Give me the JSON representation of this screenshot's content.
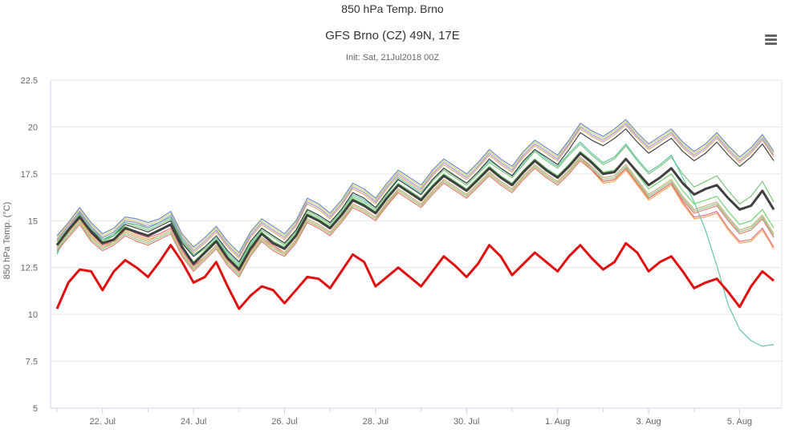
{
  "header": {
    "text": "850 hPa Temp. Brno"
  },
  "chart_data": {
    "type": "line",
    "title": "GFS Brno (CZ) 49N, 17E",
    "subtitle": "Init: Sat, 21Jul2018 00Z",
    "ylabel": "850 hPa Temp. (°C)",
    "xlabel": "",
    "ylim": [
      5,
      22.5
    ],
    "y_ticks": [
      "5",
      "7.5",
      "10",
      "12.5",
      "15",
      "17.5",
      "20",
      "22.5"
    ],
    "x_ticks": [
      "22. Jul",
      "24. Jul",
      "26. Jul",
      "28. Jul",
      "30. Jul",
      "1. Aug",
      "3. Aug",
      "5. Aug"
    ],
    "x_start": "21 Jul 00Z",
    "x_step_hours": 6,
    "grid": "horizontal",
    "legend": "none",
    "colors": {
      "red": "#e01010",
      "mean": "#404040",
      "members": [
        "#e8a060",
        "#60b8e0",
        "#70c070",
        "#e06080",
        "#d0d060",
        "#208080",
        "#50c0a0",
        "#f0a040",
        "#9090e0",
        "#e07060",
        "#303030",
        "#a0d090",
        "#6080c0",
        "#f0c080",
        "#60d060",
        "#c070c0"
      ]
    },
    "series": [
      {
        "name": "",
        "role": "red-thick",
        "values": [
          10.3,
          11.7,
          12.4,
          12.3,
          11.3,
          12.3,
          12.9,
          12.5,
          12.0,
          12.8,
          13.7,
          12.8,
          11.7,
          12.0,
          12.8,
          11.5,
          10.3,
          11.0,
          11.5,
          11.3,
          10.6,
          11.3,
          12.0,
          11.9,
          11.4,
          12.3,
          13.2,
          12.8,
          11.5,
          12.0,
          12.5,
          12.0,
          11.5,
          12.3,
          13.1,
          12.6,
          12.0,
          12.7,
          13.7,
          13.1,
          12.1,
          12.7,
          13.3,
          12.8,
          12.3,
          13.1,
          13.7,
          13.0,
          12.4,
          12.8,
          13.8,
          13.3,
          12.3,
          12.8,
          13.1,
          12.3,
          11.4,
          11.7,
          11.9,
          11.2,
          10.4,
          11.5,
          12.3,
          11.8
        ]
      },
      {
        "name": "",
        "role": "mean-thick",
        "values": [
          13.7,
          14.5,
          15.2,
          14.4,
          13.8,
          14.0,
          14.6,
          14.4,
          14.2,
          14.5,
          14.8,
          13.6,
          12.7,
          13.3,
          13.9,
          13.0,
          12.4,
          13.5,
          14.3,
          13.8,
          13.5,
          14.2,
          15.3,
          15.0,
          14.6,
          15.3,
          16.1,
          15.8,
          15.4,
          16.2,
          16.9,
          16.5,
          16.1,
          16.8,
          17.4,
          17.0,
          16.6,
          17.2,
          17.8,
          17.3,
          16.9,
          17.6,
          18.2,
          17.7,
          17.3,
          17.9,
          18.6,
          18.1,
          17.5,
          17.6,
          18.3,
          17.6,
          16.9,
          17.3,
          17.8,
          17.0,
          16.4,
          16.7,
          16.9,
          16.2,
          15.6,
          15.8,
          16.6,
          15.6
        ]
      },
      {
        "name": "",
        "values": [
          14.0,
          14.8,
          15.5,
          14.6,
          14.1,
          14.4,
          15.0,
          14.9,
          14.6,
          14.9,
          15.2,
          14.0,
          13.3,
          13.8,
          14.4,
          13.6,
          13.0,
          14.1,
          14.8,
          14.4,
          14.0,
          14.7,
          15.9,
          15.6,
          15.1,
          15.8,
          16.7,
          16.4,
          15.9,
          16.7,
          17.4,
          17.0,
          16.6,
          17.4,
          18.0,
          17.6,
          17.2,
          17.8,
          18.5,
          18.0,
          17.6,
          18.4,
          19.0,
          18.6,
          18.2,
          19.0,
          19.9,
          19.5,
          19.2,
          19.6,
          20.1,
          19.4,
          18.8,
          19.2,
          19.6,
          18.9,
          18.4,
          18.8,
          19.4,
          18.7,
          18.1,
          18.6,
          19.3,
          18.4
        ]
      },
      {
        "name": "",
        "values": [
          13.5,
          14.2,
          14.9,
          14.0,
          13.5,
          13.8,
          14.3,
          14.0,
          13.8,
          14.1,
          14.4,
          13.2,
          12.4,
          13.0,
          13.6,
          12.7,
          12.1,
          13.2,
          14.0,
          13.5,
          13.2,
          13.9,
          15.0,
          14.7,
          14.3,
          15.0,
          15.8,
          15.5,
          15.1,
          15.9,
          16.6,
          16.2,
          15.8,
          16.5,
          17.1,
          16.7,
          16.3,
          16.9,
          17.5,
          17.0,
          16.6,
          17.3,
          17.9,
          17.4,
          17.0,
          17.6,
          18.3,
          17.8,
          17.2,
          17.3,
          17.9,
          17.1,
          16.3,
          16.7,
          17.1,
          16.2,
          15.5,
          15.7,
          15.9,
          15.1,
          14.4,
          14.6,
          15.2,
          14.2
        ]
      },
      {
        "name": "",
        "values": [
          13.3,
          14.4,
          15.3,
          14.5,
          14.0,
          14.2,
          14.9,
          14.7,
          14.5,
          14.8,
          15.1,
          13.9,
          13.1,
          13.5,
          14.0,
          13.2,
          12.6,
          13.7,
          14.5,
          14.1,
          13.7,
          14.4,
          15.5,
          15.2,
          14.8,
          15.5,
          16.3,
          16.0,
          15.6,
          16.4,
          17.2,
          16.8,
          16.4,
          17.1,
          17.7,
          17.3,
          16.9,
          17.5,
          18.1,
          17.7,
          17.3,
          18.0,
          18.7,
          18.2,
          17.8,
          18.5,
          19.1,
          18.5,
          18.0,
          18.3,
          19.0,
          18.2,
          17.5,
          17.9,
          18.4,
          17.5,
          16.8,
          17.1,
          17.4,
          16.6,
          15.9,
          16.3,
          17.1,
          16.0
        ]
      },
      {
        "name": "",
        "values": [
          13.9,
          14.6,
          15.4,
          14.3,
          13.7,
          13.9,
          14.6,
          14.3,
          14.1,
          14.3,
          14.6,
          13.4,
          12.6,
          13.1,
          13.7,
          12.9,
          12.3,
          13.4,
          14.1,
          13.7,
          13.3,
          14.0,
          15.1,
          14.8,
          14.4,
          15.1,
          15.9,
          15.6,
          15.2,
          15.9,
          16.7,
          16.3,
          15.9,
          16.6,
          17.2,
          16.8,
          16.4,
          17.0,
          17.6,
          17.1,
          16.7,
          17.4,
          18.0,
          17.5,
          17.1,
          17.7,
          18.4,
          17.8,
          17.1,
          17.2,
          17.8,
          17.0,
          16.2,
          16.6,
          17.0,
          16.0,
          15.2,
          15.3,
          15.5,
          14.6,
          13.9,
          14.0,
          14.6,
          13.6
        ]
      },
      {
        "name": "",
        "values": [
          14.1,
          14.9,
          15.6,
          14.8,
          14.2,
          14.5,
          15.1,
          15.0,
          14.8,
          15.0,
          15.4,
          14.2,
          13.5,
          14.0,
          14.6,
          13.8,
          13.2,
          14.3,
          15.0,
          14.6,
          14.2,
          14.9,
          16.1,
          15.8,
          15.3,
          16.0,
          16.9,
          16.6,
          16.1,
          16.9,
          17.6,
          17.2,
          16.8,
          17.6,
          18.2,
          17.8,
          17.4,
          18.0,
          18.7,
          18.2,
          17.8,
          18.6,
          19.2,
          18.8,
          18.4,
          19.2,
          20.1,
          19.7,
          19.4,
          19.8,
          20.3,
          19.6,
          19.0,
          19.4,
          19.8,
          19.1,
          18.6,
          19.0,
          19.6,
          18.9,
          18.3,
          18.8,
          19.5,
          18.6
        ]
      },
      {
        "name": "",
        "values": [
          13.6,
          14.3,
          15.0,
          14.1,
          13.6,
          13.9,
          14.4,
          14.1,
          13.9,
          14.2,
          14.5,
          13.3,
          12.5,
          13.1,
          13.7,
          12.8,
          12.2,
          13.3,
          14.1,
          13.6,
          13.3,
          14.0,
          15.1,
          14.8,
          14.4,
          15.1,
          15.9,
          15.6,
          15.2,
          16.0,
          16.7,
          16.3,
          15.9,
          16.6,
          17.2,
          16.8,
          16.4,
          17.0,
          17.6,
          17.1,
          16.7,
          17.4,
          18.0,
          17.5,
          17.1,
          17.7,
          18.4,
          17.9,
          17.3,
          17.4,
          18.0,
          17.2,
          16.4,
          16.8,
          17.2,
          16.3,
          15.6,
          15.8,
          16.0,
          15.2,
          14.5,
          14.7,
          15.3,
          14.3
        ]
      },
      {
        "name": "",
        "values": [
          13.2,
          14.5,
          15.4,
          14.6,
          14.0,
          14.3,
          14.9,
          14.8,
          14.6,
          14.9,
          15.2,
          14.0,
          13.2,
          13.6,
          14.1,
          13.3,
          12.7,
          13.8,
          14.6,
          14.2,
          13.8,
          14.5,
          15.6,
          15.3,
          14.9,
          15.6,
          16.4,
          16.1,
          15.7,
          16.5,
          17.3,
          16.9,
          16.5,
          17.2,
          17.8,
          17.4,
          17.0,
          17.6,
          18.2,
          17.8,
          17.4,
          18.1,
          18.8,
          18.3,
          17.9,
          18.6,
          19.2,
          18.6,
          18.1,
          18.4,
          19.1,
          18.3,
          17.6,
          18.0,
          18.5,
          17.3,
          16.0,
          14.5,
          12.6,
          10.5,
          9.2,
          8.6,
          8.3,
          8.4
        ]
      },
      {
        "name": "",
        "values": [
          13.8,
          14.4,
          15.1,
          14.2,
          13.6,
          13.8,
          14.5,
          14.2,
          14.0,
          14.2,
          14.5,
          13.3,
          12.5,
          13.0,
          13.6,
          12.8,
          12.2,
          13.3,
          14.0,
          13.6,
          13.2,
          13.9,
          15.0,
          14.7,
          14.3,
          15.0,
          15.8,
          15.5,
          15.1,
          15.8,
          16.6,
          16.2,
          15.8,
          16.5,
          17.1,
          16.7,
          16.3,
          16.9,
          17.5,
          17.0,
          16.6,
          17.3,
          17.9,
          17.4,
          17.0,
          17.6,
          18.3,
          17.7,
          17.0,
          17.1,
          17.7,
          16.9,
          16.1,
          16.5,
          16.9,
          15.9,
          15.1,
          15.2,
          15.4,
          14.5,
          13.8,
          13.9,
          14.5,
          13.5
        ]
      },
      {
        "name": "",
        "values": [
          14.0,
          14.7,
          15.5,
          14.7,
          14.1,
          14.4,
          15.0,
          14.9,
          14.7,
          14.9,
          15.3,
          14.1,
          13.4,
          13.9,
          14.5,
          13.7,
          13.1,
          14.2,
          14.9,
          14.5,
          14.1,
          14.8,
          16.0,
          15.7,
          15.2,
          15.9,
          16.8,
          16.5,
          16.0,
          16.8,
          17.5,
          17.1,
          16.7,
          17.5,
          18.1,
          17.7,
          17.3,
          17.9,
          18.6,
          18.1,
          17.7,
          18.5,
          19.1,
          18.7,
          18.3,
          19.1,
          20.0,
          19.6,
          19.3,
          19.7,
          20.2,
          19.5,
          18.9,
          19.3,
          19.7,
          19.0,
          18.5,
          18.9,
          19.5,
          18.8,
          18.2,
          18.7,
          19.4,
          18.5
        ]
      },
      {
        "name": "",
        "values": [
          13.4,
          14.1,
          14.8,
          13.9,
          13.4,
          13.7,
          14.2,
          13.9,
          13.7,
          14.0,
          14.3,
          13.1,
          12.3,
          12.9,
          13.5,
          12.6,
          12.0,
          13.1,
          13.9,
          13.4,
          13.1,
          13.8,
          14.9,
          14.6,
          14.2,
          14.9,
          15.7,
          15.4,
          15.0,
          15.8,
          16.5,
          16.1,
          15.7,
          16.4,
          17.0,
          16.6,
          16.2,
          16.8,
          17.4,
          16.9,
          16.5,
          17.2,
          17.8,
          17.3,
          16.9,
          17.5,
          18.2,
          17.7,
          17.1,
          17.2,
          17.8,
          17.0,
          16.2,
          16.6,
          17.0,
          16.1,
          15.4,
          15.6,
          15.8,
          15.0,
          14.3,
          14.5,
          15.1,
          14.1
        ]
      },
      {
        "name": "",
        "values": [
          13.7,
          14.5,
          15.2,
          14.5,
          13.9,
          14.2,
          14.8,
          14.6,
          14.4,
          14.7,
          15.0,
          13.8,
          13.1,
          13.6,
          14.2,
          13.4,
          12.8,
          13.9,
          14.6,
          14.2,
          13.8,
          14.5,
          15.6,
          15.3,
          14.9,
          15.6,
          16.5,
          16.2,
          15.7,
          16.5,
          17.2,
          16.8,
          16.4,
          17.2,
          17.8,
          17.4,
          17.0,
          17.6,
          18.3,
          17.8,
          17.4,
          18.2,
          18.8,
          18.4,
          18.0,
          18.8,
          19.7,
          19.3,
          19.0,
          19.4,
          19.9,
          19.2,
          18.6,
          19.0,
          19.4,
          18.7,
          18.2,
          18.6,
          19.2,
          18.5,
          17.9,
          18.4,
          19.1,
          18.2
        ]
      },
      {
        "name": "",
        "values": [
          13.5,
          14.2,
          14.9,
          14.0,
          13.5,
          13.8,
          14.3,
          14.0,
          13.8,
          14.1,
          14.4,
          13.2,
          12.4,
          13.0,
          13.6,
          12.7,
          12.1,
          13.2,
          14.0,
          13.5,
          13.2,
          13.9,
          15.0,
          14.7,
          14.3,
          15.0,
          15.8,
          15.5,
          15.1,
          15.9,
          16.6,
          16.2,
          15.8,
          16.5,
          17.1,
          16.7,
          16.3,
          16.9,
          17.5,
          17.0,
          16.6,
          17.3,
          17.9,
          17.4,
          17.0,
          17.6,
          18.3,
          17.8,
          17.2,
          17.3,
          17.9,
          17.1,
          16.3,
          16.7,
          17.1,
          16.2,
          15.5,
          15.7,
          15.9,
          15.1,
          14.4,
          14.6,
          15.2,
          14.2
        ]
      },
      {
        "name": "",
        "values": [
          14.2,
          14.9,
          15.7,
          14.9,
          14.3,
          14.6,
          15.2,
          15.1,
          14.9,
          15.1,
          15.5,
          14.3,
          13.6,
          14.1,
          14.7,
          13.9,
          13.3,
          14.4,
          15.1,
          14.7,
          14.3,
          15.0,
          16.2,
          15.9,
          15.4,
          16.1,
          17.0,
          16.7,
          16.2,
          17.0,
          17.7,
          17.3,
          16.9,
          17.7,
          18.3,
          17.9,
          17.5,
          18.1,
          18.8,
          18.3,
          17.9,
          18.7,
          19.3,
          18.9,
          18.5,
          19.3,
          20.2,
          19.8,
          19.5,
          19.9,
          20.4,
          19.7,
          19.1,
          19.5,
          19.9,
          19.2,
          18.7,
          19.1,
          19.7,
          19.0,
          18.4,
          18.9,
          19.6,
          18.7
        ]
      },
      {
        "name": "",
        "values": [
          13.6,
          14.3,
          15.0,
          14.1,
          13.6,
          13.9,
          14.4,
          14.1,
          13.9,
          14.2,
          14.5,
          13.3,
          12.5,
          13.1,
          13.7,
          12.8,
          12.2,
          13.3,
          14.1,
          13.6,
          13.3,
          14.0,
          15.1,
          14.8,
          14.4,
          15.1,
          15.9,
          15.6,
          15.2,
          16.0,
          16.7,
          16.3,
          15.9,
          16.6,
          17.2,
          16.8,
          16.4,
          17.0,
          17.6,
          17.1,
          16.7,
          17.4,
          18.0,
          17.5,
          17.1,
          17.7,
          18.4,
          17.9,
          17.3,
          17.4,
          18.0,
          17.2,
          16.4,
          16.8,
          17.2,
          16.3,
          15.6,
          15.8,
          16.0,
          15.2,
          14.5,
          14.7,
          15.3,
          14.3
        ]
      },
      {
        "name": "",
        "values": [
          13.9,
          14.6,
          15.3,
          14.4,
          13.9,
          14.2,
          14.7,
          14.4,
          14.2,
          14.5,
          14.8,
          13.6,
          12.8,
          13.4,
          14.0,
          13.1,
          12.5,
          13.6,
          14.4,
          13.9,
          13.6,
          14.3,
          15.4,
          15.1,
          14.7,
          15.4,
          16.2,
          15.9,
          15.5,
          16.3,
          17.0,
          16.6,
          16.2,
          16.9,
          17.5,
          17.1,
          16.7,
          17.3,
          17.9,
          17.4,
          17.0,
          17.7,
          18.3,
          17.8,
          17.4,
          18.0,
          18.7,
          18.2,
          17.6,
          17.7,
          18.3,
          17.5,
          16.7,
          17.1,
          17.5,
          16.6,
          15.9,
          16.1,
          16.3,
          15.5,
          14.8,
          15.0,
          15.6,
          14.6
        ]
      }
    ]
  }
}
